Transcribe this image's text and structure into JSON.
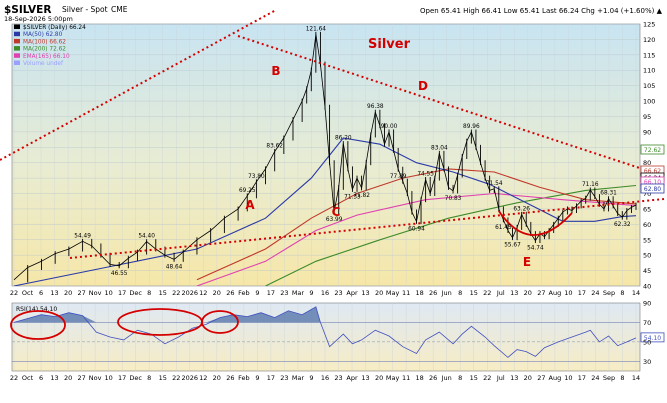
{
  "header": {
    "symbol": "$SILVER",
    "name": "Silver - Spot",
    "exchange": "CME",
    "date": "18-Sep-2026 5:00pm",
    "quote": {
      "open": "65.41",
      "high": "66.41",
      "low": "65.41",
      "last": "66.24",
      "change": "+1.04 (+1.60%)"
    },
    "stats": "Open 65.41  High 66.41  Low 65.41  Last 66.24  Chg +1.04 (+1.60%) ▲"
  },
  "legend": [
    {
      "label": "$SILVER (Daily) 66.24",
      "color": "#000000"
    },
    {
      "label": "MA(50) 62.80",
      "color": "#2b3aa8"
    },
    {
      "label": "MA(100) 66.62",
      "color": "#c0392b"
    },
    {
      "label": "MA(200) 72.62",
      "color": "#3d8b2a"
    },
    {
      "label": "EMA(165) 66.10",
      "color": "#e040b0"
    },
    {
      "label": "Volume undef",
      "color": "#9aa0ff"
    }
  ],
  "colors": {
    "accent": "#d40000",
    "price": "#000000",
    "ma50": "#2b3aa8",
    "ma100": "#c0392b",
    "ma200": "#3d8b2a",
    "ema165": "#e040b0",
    "rsi": "#4050c0",
    "bg_top": "#c8e4f2",
    "bg_bottom": "#f6e7a8"
  },
  "annotations": {
    "title": "Silver",
    "points": [
      "A",
      "B",
      "C",
      "D",
      "E"
    ]
  },
  "chart_data": [
    {
      "type": "line",
      "series_label": "$SILVER (Daily) 66.24",
      "ylim": [
        40,
        125
      ],
      "y_ticks": [
        40,
        45,
        50,
        55,
        60,
        65,
        70,
        75,
        80,
        85,
        90,
        95,
        100,
        105,
        110,
        115,
        120,
        125
      ],
      "x_tick_labels": [
        "22",
        "Oct",
        "6",
        "13",
        "20",
        "27",
        "Nov",
        "10",
        "17",
        "Dec",
        "8",
        "15",
        "22",
        "2026",
        "12",
        "20",
        "26",
        "Feb",
        "9",
        "17",
        "23",
        "Mar",
        "9",
        "16",
        "23",
        "Apr",
        "13",
        "20",
        "May",
        "11",
        "18",
        "26",
        "Jun",
        "8",
        "15",
        "22",
        "Jul",
        "13",
        "20",
        "27",
        "Aug",
        "10",
        "17",
        "24",
        "Sep",
        "8",
        "14"
      ],
      "price_points": [
        [
          0,
          42
        ],
        [
          3,
          46
        ],
        [
          6,
          48
        ],
        [
          9,
          50.5
        ],
        [
          12,
          52
        ],
        [
          15,
          54.49
        ],
        [
          17,
          53
        ],
        [
          19,
          50
        ],
        [
          21,
          47
        ],
        [
          23,
          46.55
        ],
        [
          25,
          49
        ],
        [
          27,
          51
        ],
        [
          29,
          54.4
        ],
        [
          31,
          52
        ],
        [
          33,
          50
        ],
        [
          35,
          48.64
        ],
        [
          37,
          51
        ],
        [
          40,
          55
        ],
        [
          43,
          58
        ],
        [
          46,
          62
        ],
        [
          49,
          65
        ],
        [
          51,
          69.25
        ],
        [
          53,
          73.8
        ],
        [
          55,
          78
        ],
        [
          57,
          83.62
        ],
        [
          59,
          88
        ],
        [
          61,
          94
        ],
        [
          63,
          100
        ],
        [
          64,
          104
        ],
        [
          65,
          110
        ],
        [
          66,
          121.64
        ],
        [
          67,
          112
        ],
        [
          68,
          98
        ],
        [
          69,
          80
        ],
        [
          70,
          63.99
        ],
        [
          71,
          72
        ],
        [
          72,
          86.2
        ],
        [
          73,
          78
        ],
        [
          74,
          71.33
        ],
        [
          75,
          75
        ],
        [
          76,
          71.82
        ],
        [
          77,
          80
        ],
        [
          78,
          89
        ],
        [
          79,
          96.38
        ],
        [
          80,
          92
        ],
        [
          81,
          86
        ],
        [
          82,
          90
        ],
        [
          83,
          84
        ],
        [
          84,
          77.89
        ],
        [
          85,
          74
        ],
        [
          86,
          70
        ],
        [
          87,
          64
        ],
        [
          88,
          60.94
        ],
        [
          89,
          68
        ],
        [
          90,
          74.55
        ],
        [
          91,
          70
        ],
        [
          92,
          75
        ],
        [
          93,
          83.04
        ],
        [
          94,
          78
        ],
        [
          95,
          72
        ],
        [
          96,
          70.83
        ],
        [
          97,
          76
        ],
        [
          98,
          82
        ],
        [
          99,
          87
        ],
        [
          100,
          89.96
        ],
        [
          101,
          85
        ],
        [
          102,
          80
        ],
        [
          103,
          75
        ],
        [
          104,
          71
        ],
        [
          105,
          71.54
        ],
        [
          106,
          65
        ],
        [
          107,
          61.45
        ],
        [
          108,
          58
        ],
        [
          109,
          55.67
        ],
        [
          110,
          59
        ],
        [
          111,
          63.26
        ],
        [
          112,
          60
        ],
        [
          113,
          57
        ],
        [
          114,
          54.74
        ],
        [
          115,
          57
        ],
        [
          116,
          56
        ],
        [
          117,
          58
        ],
        [
          118,
          60
        ],
        [
          119,
          62
        ],
        [
          120,
          64
        ],
        [
          121,
          65
        ],
        [
          122,
          64.5
        ],
        [
          123,
          66
        ],
        [
          124,
          67.5
        ],
        [
          125,
          68.5
        ],
        [
          126,
          71.16
        ],
        [
          127,
          69
        ],
        [
          128,
          66.5
        ],
        [
          129,
          65
        ],
        [
          130,
          68.31
        ],
        [
          131,
          66
        ],
        [
          132,
          63.5
        ],
        [
          133,
          62.32
        ],
        [
          134,
          64.5
        ],
        [
          135,
          65.5
        ],
        [
          136,
          66.24
        ]
      ],
      "labels": [
        {
          "i": 15,
          "v": 54.49,
          "text": "54.49"
        },
        {
          "i": 23,
          "v": 46.55,
          "text": "46.55"
        },
        {
          "i": 29,
          "v": 54.4,
          "text": "54.40"
        },
        {
          "i": 35,
          "v": 48.64,
          "text": "48.64"
        },
        {
          "i": 51,
          "v": 69.25,
          "text": "69.25"
        },
        {
          "i": 53,
          "v": 73.8,
          "text": "73.80"
        },
        {
          "i": 57,
          "v": 83.62,
          "text": "83.62"
        },
        {
          "i": 66,
          "v": 121.64,
          "text": "121.64"
        },
        {
          "i": 70,
          "v": 63.99,
          "text": "63.99"
        },
        {
          "i": 72,
          "v": 86.2,
          "text": "86.20"
        },
        {
          "i": 74,
          "v": 71.33,
          "text": "71.33"
        },
        {
          "i": 76,
          "v": 71.82,
          "text": "71.82"
        },
        {
          "i": 79,
          "v": 96.38,
          "text": "96.38"
        },
        {
          "i": 82,
          "v": 90.0,
          "text": "90.00"
        },
        {
          "i": 84,
          "v": 77.89,
          "text": "77.89"
        },
        {
          "i": 88,
          "v": 60.94,
          "text": "60.94"
        },
        {
          "i": 90,
          "v": 74.55,
          "text": "74.55"
        },
        {
          "i": 93,
          "v": 83.04,
          "text": "83.04"
        },
        {
          "i": 96,
          "v": 70.83,
          "text": "70.83"
        },
        {
          "i": 100,
          "v": 89.96,
          "text": "89.96"
        },
        {
          "i": 105,
          "v": 71.54,
          "text": "71.54"
        },
        {
          "i": 107,
          "v": 61.45,
          "text": "61.45"
        },
        {
          "i": 109,
          "v": 55.67,
          "text": "55.67"
        },
        {
          "i": 111,
          "v": 63.26,
          "text": "63.26"
        },
        {
          "i": 114,
          "v": 54.74,
          "text": "54.74"
        },
        {
          "i": 126,
          "v": 71.16,
          "text": "71.16"
        },
        {
          "i": 130,
          "v": 68.31,
          "text": "68.31"
        },
        {
          "i": 133,
          "v": 62.32,
          "text": "62.32"
        }
      ],
      "ma": {
        "ma50": [
          [
            0,
            40
          ],
          [
            20,
            46
          ],
          [
            40,
            52
          ],
          [
            55,
            62
          ],
          [
            65,
            75
          ],
          [
            72,
            88
          ],
          [
            80,
            86
          ],
          [
            88,
            80
          ],
          [
            96,
            77
          ],
          [
            104,
            73
          ],
          [
            112,
            67
          ],
          [
            120,
            61
          ],
          [
            127,
            61
          ],
          [
            133,
            62.5
          ],
          [
            136,
            62.8
          ]
        ],
        "ma100": [
          [
            40,
            42
          ],
          [
            55,
            52
          ],
          [
            65,
            62
          ],
          [
            75,
            70
          ],
          [
            85,
            75
          ],
          [
            95,
            78
          ],
          [
            105,
            77
          ],
          [
            115,
            72
          ],
          [
            125,
            68
          ],
          [
            136,
            66.62
          ]
        ],
        "ema165": [
          [
            40,
            40
          ],
          [
            55,
            48
          ],
          [
            66,
            58
          ],
          [
            75,
            63
          ],
          [
            90,
            68
          ],
          [
            105,
            70
          ],
          [
            120,
            68
          ],
          [
            136,
            66.1
          ]
        ],
        "ma200": [
          [
            55,
            40
          ],
          [
            66,
            48
          ],
          [
            80,
            55
          ],
          [
            95,
            62
          ],
          [
            110,
            67
          ],
          [
            125,
            71
          ],
          [
            136,
            72.62
          ]
        ]
      },
      "price_tags": [
        {
          "text": "72.62",
          "color": "#3d8b2a"
        },
        {
          "text": "66.62",
          "color": "#c0392b"
        },
        {
          "text": "66.24",
          "color": "#000000"
        },
        {
          "text": "66.10",
          "color": "#e040b0"
        },
        {
          "text": "62.80",
          "color": "#2b3aa8"
        }
      ]
    },
    {
      "type": "line",
      "series_label": "RSI(14) 54.10",
      "ylim": [
        20,
        90
      ],
      "y_ticks": [
        30,
        50,
        70,
        90
      ],
      "levels": [
        70,
        50,
        30
      ],
      "last": 54.1,
      "values": [
        [
          0,
          70
        ],
        [
          3,
          74
        ],
        [
          6,
          78
        ],
        [
          9,
          76
        ],
        [
          12,
          80
        ],
        [
          15,
          77
        ],
        [
          18,
          60
        ],
        [
          21,
          55
        ],
        [
          24,
          52
        ],
        [
          27,
          62
        ],
        [
          30,
          58
        ],
        [
          33,
          48
        ],
        [
          36,
          55
        ],
        [
          39,
          64
        ],
        [
          42,
          68
        ],
        [
          45,
          75
        ],
        [
          48,
          78
        ],
        [
          51,
          76
        ],
        [
          54,
          80
        ],
        [
          57,
          75
        ],
        [
          60,
          82
        ],
        [
          63,
          78
        ],
        [
          66,
          86
        ],
        [
          67,
          70
        ],
        [
          69,
          45
        ],
        [
          72,
          58
        ],
        [
          74,
          48
        ],
        [
          76,
          52
        ],
        [
          79,
          62
        ],
        [
          82,
          56
        ],
        [
          85,
          45
        ],
        [
          88,
          38
        ],
        [
          90,
          52
        ],
        [
          93,
          60
        ],
        [
          96,
          48
        ],
        [
          98,
          58
        ],
        [
          100,
          66
        ],
        [
          103,
          55
        ],
        [
          105,
          46
        ],
        [
          108,
          34
        ],
        [
          110,
          42
        ],
        [
          112,
          40
        ],
        [
          114,
          35
        ],
        [
          116,
          44
        ],
        [
          119,
          50
        ],
        [
          122,
          55
        ],
        [
          125,
          60
        ],
        [
          126,
          62
        ],
        [
          128,
          50
        ],
        [
          130,
          56
        ],
        [
          132,
          46
        ],
        [
          134,
          50
        ],
        [
          136,
          54.1
        ]
      ],
      "x_tick_labels": [
        "22",
        "Oct",
        "6",
        "13",
        "20",
        "27",
        "Nov",
        "10",
        "17",
        "Dec",
        "8",
        "15",
        "22",
        "2026",
        "12",
        "20",
        "26",
        "Feb",
        "9",
        "17",
        "23",
        "Mar",
        "9",
        "16",
        "23",
        "Apr",
        "13",
        "20",
        "May",
        "11",
        "18",
        "26",
        "Jun",
        "8",
        "15",
        "22",
        "Jul",
        "13",
        "20",
        "27",
        "Aug",
        "10",
        "17",
        "24",
        "Sep",
        "8",
        "14"
      ]
    }
  ]
}
